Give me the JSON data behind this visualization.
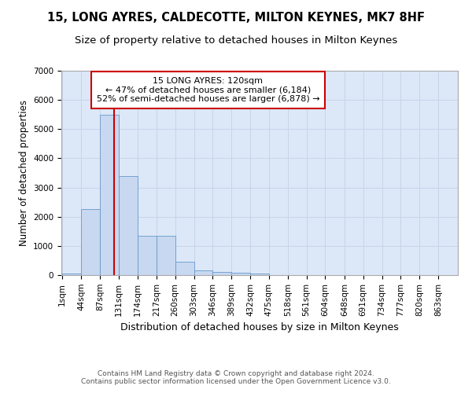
{
  "title": "15, LONG AYRES, CALDECOTTE, MILTON KEYNES, MK7 8HF",
  "subtitle": "Size of property relative to detached houses in Milton Keynes",
  "xlabel": "Distribution of detached houses by size in Milton Keynes",
  "ylabel": "Number of detached properties",
  "bin_edges": [
    1,
    44,
    87,
    131,
    174,
    217,
    260,
    303,
    346,
    389,
    432,
    475,
    518,
    561,
    604,
    648,
    691,
    734,
    777,
    820,
    863
  ],
  "bar_heights": [
    50,
    2250,
    5500,
    3400,
    1340,
    1340,
    450,
    175,
    100,
    75,
    50,
    0,
    0,
    0,
    0,
    0,
    0,
    0,
    0,
    0
  ],
  "bar_color": "#c8d8f0",
  "bar_edge_color": "#6699cc",
  "grid_color": "#c8d4e8",
  "vline_x": 120,
  "vline_color": "#cc0000",
  "annotation_text": "15 LONG AYRES: 120sqm\n← 47% of detached houses are smaller (6,184)\n52% of semi-detached houses are larger (6,878) →",
  "annotation_box_color": "#ffffff",
  "annotation_box_edge_color": "#cc0000",
  "ylim": [
    0,
    7000
  ],
  "yticks": [
    0,
    1000,
    2000,
    3000,
    4000,
    5000,
    6000,
    7000
  ],
  "background_color": "#ffffff",
  "plot_background_color": "#dce8f8",
  "footer": "Contains HM Land Registry data © Crown copyright and database right 2024.\nContains public sector information licensed under the Open Government Licence v3.0.",
  "title_fontsize": 10.5,
  "subtitle_fontsize": 9.5,
  "annotation_fontsize": 8,
  "ylabel_fontsize": 8.5,
  "xlabel_fontsize": 9,
  "tick_fontsize": 7.5,
  "footer_fontsize": 6.5
}
